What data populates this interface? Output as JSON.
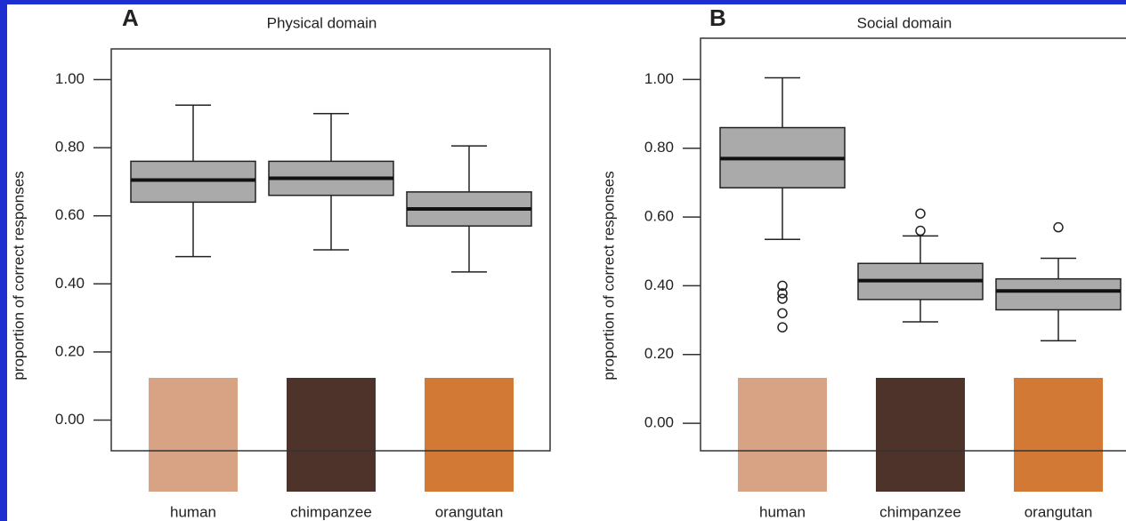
{
  "chart_data": [
    {
      "type": "box",
      "label": "A",
      "title": "Physical domain",
      "ylabel": "proportion of correct responses",
      "categories": [
        "human",
        "chimpanzee",
        "orangutan"
      ],
      "color": "#aaaaaa",
      "ylim": [
        -0.09,
        1.09
      ],
      "yticks": [
        {
          "value": 0,
          "label": "0.00"
        },
        {
          "value": 0.2,
          "label": "0.20"
        },
        {
          "value": 0.4,
          "label": "0.40"
        },
        {
          "value": 0.6,
          "label": "0.60"
        },
        {
          "value": 0.8,
          "label": "0.80"
        },
        {
          "value": 1,
          "label": "1.00"
        }
      ],
      "boxes": [
        {
          "min": 0.48,
          "q1": 0.64,
          "median": 0.705,
          "q3": 0.76,
          "max": 0.925,
          "outliers": []
        },
        {
          "min": 0.5,
          "q1": 0.66,
          "median": 0.71,
          "q3": 0.76,
          "max": 0.9,
          "outliers": []
        },
        {
          "min": 0.435,
          "q1": 0.57,
          "median": 0.62,
          "q3": 0.67,
          "max": 0.805,
          "outliers": []
        }
      ]
    },
    {
      "type": "box",
      "label": "B",
      "title": "Social domain",
      "ylabel": "proportion of correct responses",
      "categories": [
        "human",
        "chimpanzee",
        "orangutan"
      ],
      "color": "#aaaaaa",
      "ylim": [
        -0.08,
        1.12
      ],
      "yticks": [
        {
          "value": 0,
          "label": "0.00"
        },
        {
          "value": 0.2,
          "label": "0.20"
        },
        {
          "value": 0.4,
          "label": "0.40"
        },
        {
          "value": 0.6,
          "label": "0.60"
        },
        {
          "value": 0.8,
          "label": "0.80"
        },
        {
          "value": 1,
          "label": "1.00"
        }
      ],
      "boxes": [
        {
          "min": 0.535,
          "q1": 0.685,
          "median": 0.77,
          "q3": 0.86,
          "max": 1.005,
          "outliers": [
            0.4,
            0.378,
            0.362,
            0.32,
            0.279
          ]
        },
        {
          "min": 0.295,
          "q1": 0.36,
          "median": 0.415,
          "q3": 0.465,
          "max": 0.545,
          "outliers": [
            0.56,
            0.61
          ]
        },
        {
          "min": 0.24,
          "q1": 0.33,
          "median": 0.385,
          "q3": 0.42,
          "max": 0.48,
          "outliers": [
            0.57
          ]
        }
      ]
    }
  ]
}
